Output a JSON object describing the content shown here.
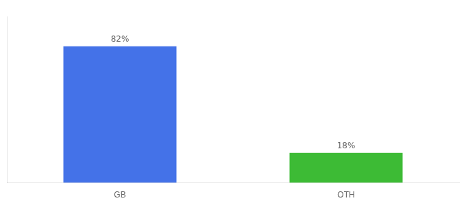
{
  "chart_data": {
    "type": "bar",
    "categories": [
      "GB",
      "OTH"
    ],
    "values": [
      82,
      18
    ],
    "value_labels": [
      "82%",
      "18%"
    ],
    "data_labels": true,
    "colors": [
      "#4472e8",
      "#3dbb35"
    ],
    "ylim": [
      0,
      100
    ],
    "tick_labels": "x",
    "grid": false
  }
}
